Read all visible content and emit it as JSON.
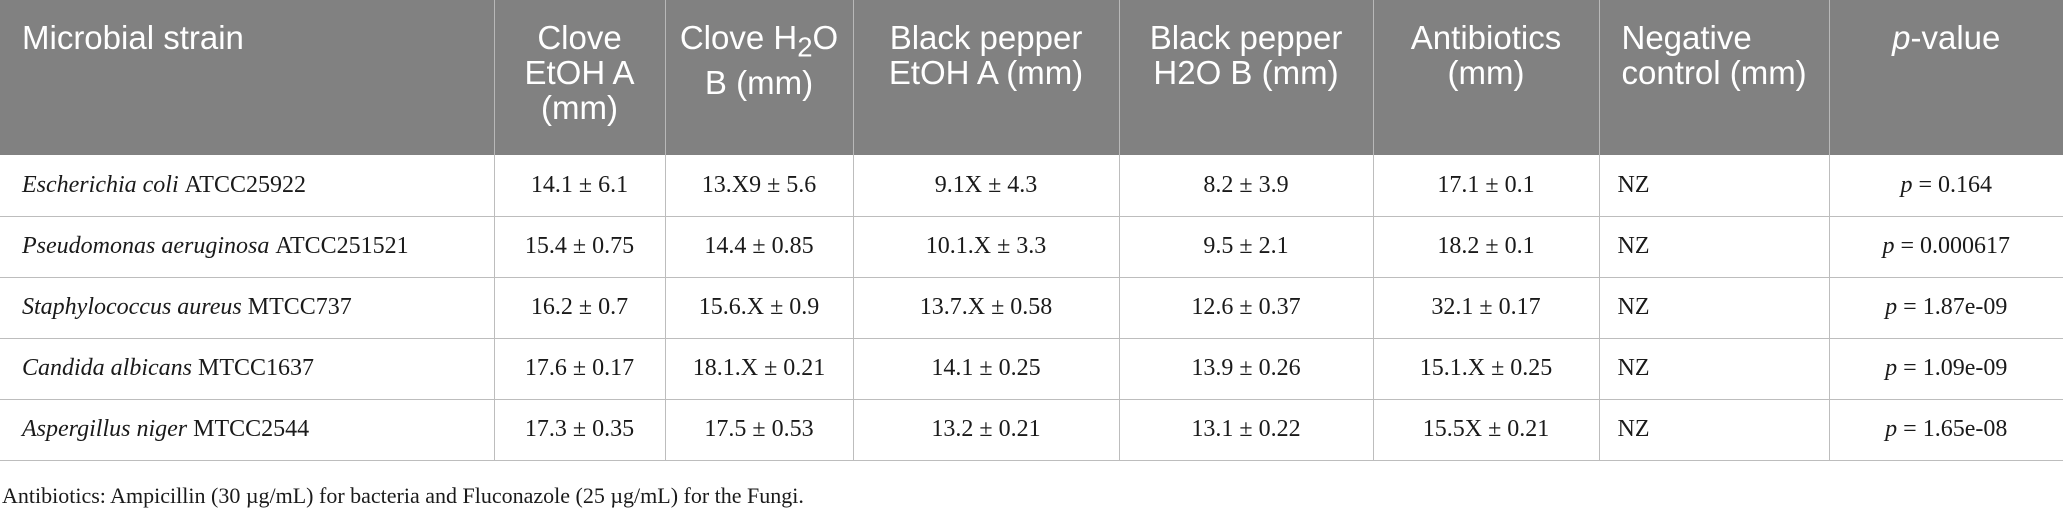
{
  "table": {
    "header": [
      [
        "Microbial strain"
      ],
      [
        "Clove EtOH A (mm)"
      ],
      [
        "Clove H",
        "2",
        "O B (mm)"
      ],
      [
        "Black pepper EtOH A (mm)"
      ],
      [
        "Black pepper H2O B (mm)"
      ],
      [
        "Antibiotics (mm)"
      ],
      [
        "Negative control (mm)"
      ],
      [
        "p",
        "-value"
      ]
    ],
    "rows": [
      {
        "strain": [
          "Escherichia coli",
          "ATCC25922"
        ],
        "cells": [
          "14.1 ± 6.1",
          "13.X9 ± 5.6",
          "9.1X ± 4.3",
          "8.2 ± 3.9",
          "17.1 ± 0.1",
          "NZ"
        ],
        "p": [
          "p",
          "= 0.164"
        ]
      },
      {
        "strain": [
          "Pseudomonas aeruginosa",
          "ATCC251521"
        ],
        "cells": [
          "15.4 ± 0.75",
          "14.4 ± 0.85",
          "10.1.X ± 3.3",
          "9.5 ± 2.1",
          "18.2 ± 0.1",
          "NZ"
        ],
        "p": [
          "p",
          "= 0.000617"
        ]
      },
      {
        "strain": [
          "Staphylococcus aureus",
          "MTCC737"
        ],
        "cells": [
          "16.2 ± 0.7",
          "15.6.X ± 0.9",
          "13.7.X ± 0.58",
          "12.6 ± 0.37",
          "32.1 ± 0.17",
          "NZ"
        ],
        "p": [
          "p",
          "= 1.87e-09"
        ]
      },
      {
        "strain": [
          "Candida albicans",
          "MTCC1637"
        ],
        "cells": [
          "17.6 ± 0.17",
          "18.1.X ± 0.21",
          "14.1 ± 0.25",
          "13.9 ± 0.26",
          "15.1.X ± 0.25",
          "NZ"
        ],
        "p": [
          "p",
          "= 1.09e-09"
        ]
      },
      {
        "strain": [
          "Aspergillus niger",
          "MTCC2544"
        ],
        "cells": [
          "17.3 ± 0.35",
          "17.5 ± 0.53",
          "13.2 ± 0.21",
          "13.1 ± 0.22",
          "15.5X ± 0.21",
          "NZ"
        ],
        "p": [
          "p",
          "= 1.65e-08"
        ]
      }
    ]
  },
  "footnote": "Antibiotics: Ampicillin (30 µg/mL) for bacteria and Fluconazole (25 µg/mL) for the Fungi."
}
